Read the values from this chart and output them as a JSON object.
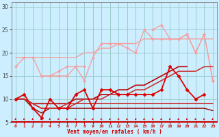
{
  "xlabel": "Vent moyen/en rafales ( km/h )",
  "bg_color": "#cceeff",
  "grid_color": "#99cccc",
  "x": [
    0,
    1,
    2,
    3,
    4,
    5,
    6,
    7,
    8,
    9,
    10,
    11,
    12,
    13,
    14,
    15,
    16,
    17,
    18,
    19,
    20,
    21,
    22,
    23
  ],
  "lines": [
    {
      "y": [
        19,
        19,
        19,
        19,
        19,
        19,
        19,
        19,
        20,
        20,
        21,
        21,
        22,
        22,
        22,
        23,
        23,
        23,
        23,
        23,
        23,
        23,
        23,
        23
      ],
      "color": "#f4a0a0",
      "lw": 1.0,
      "marker": null,
      "ms": 0,
      "zorder": 2
    },
    {
      "y": [
        17,
        19,
        19,
        15,
        15,
        16,
        17,
        17,
        14,
        19,
        22,
        22,
        22,
        21,
        20,
        25,
        23,
        23,
        23,
        23,
        24,
        20,
        24,
        14
      ],
      "color": "#f4a0a0",
      "lw": 1.0,
      "marker": "D",
      "ms": 2.0,
      "zorder": 3
    },
    {
      "y": [
        null,
        null,
        null,
        15,
        15,
        15,
        15,
        17,
        17,
        null,
        null,
        null,
        null,
        null,
        null,
        null,
        null,
        null,
        null,
        null,
        null,
        null,
        null,
        null
      ],
      "color": "#f4a0a0",
      "lw": 1.0,
      "marker": "D",
      "ms": 2.0,
      "zorder": 3
    },
    {
      "y": [
        null,
        null,
        null,
        null,
        null,
        null,
        null,
        null,
        null,
        null,
        null,
        null,
        null,
        null,
        null,
        null,
        25,
        26,
        23,
        23,
        24,
        20,
        24,
        14
      ],
      "color": "#f4a0a0",
      "lw": 1.0,
      "marker": "D",
      "ms": 2.0,
      "zorder": 3
    },
    {
      "y": [
        10,
        11,
        8,
        6,
        10,
        8,
        8,
        11,
        12,
        8,
        12,
        12,
        11,
        11,
        11,
        11,
        11,
        12,
        17,
        15,
        12,
        10,
        11,
        null
      ],
      "color": "#dd0000",
      "lw": 1.3,
      "marker": "D",
      "ms": 2.5,
      "zorder": 4
    },
    {
      "y": [
        10,
        10,
        9,
        9,
        9,
        9,
        9,
        10,
        10,
        10,
        11,
        11,
        12,
        12,
        13,
        13,
        14,
        15,
        16,
        17,
        17,
        null,
        null,
        null
      ],
      "color": "#bb0000",
      "lw": 1.2,
      "marker": null,
      "ms": 0,
      "zorder": 3
    },
    {
      "y": [
        10,
        10,
        8,
        7,
        8,
        8,
        8,
        8,
        8,
        8,
        8,
        8,
        8,
        8,
        8,
        8,
        8,
        8,
        8,
        8,
        8,
        8,
        8,
        7.5
      ],
      "color": "#990000",
      "lw": 1.0,
      "marker": null,
      "ms": 0,
      "zorder": 2
    },
    {
      "y": [
        10,
        10,
        9,
        8,
        8,
        8,
        8,
        9,
        9,
        9,
        9,
        9,
        9,
        9,
        9,
        9,
        9,
        9,
        9,
        9,
        9,
        9,
        9,
        9
      ],
      "color": "#cc1111",
      "lw": 1.0,
      "marker": null,
      "ms": 0,
      "zorder": 2
    },
    {
      "y": [
        10,
        10,
        9,
        8,
        8,
        8,
        9,
        9,
        10,
        10,
        10,
        11,
        11,
        11,
        12,
        12,
        13,
        14,
        15,
        16,
        16,
        16,
        17,
        17
      ],
      "color": "#cc3333",
      "lw": 1.2,
      "marker": null,
      "ms": 0,
      "zorder": 3
    }
  ],
  "arrow_color": "#cc0000",
  "ylim": [
    5,
    31
  ],
  "yticks": [
    5,
    10,
    15,
    20,
    25,
    30
  ],
  "xlim": [
    -0.5,
    23.5
  ],
  "xticks": [
    0,
    1,
    2,
    3,
    4,
    5,
    6,
    7,
    8,
    9,
    10,
    11,
    12,
    13,
    14,
    15,
    16,
    17,
    18,
    19,
    20,
    21,
    22,
    23
  ],
  "xlabel_color": "#cc0000",
  "tick_color_x": "#cc0000",
  "tick_color_y": "#444444"
}
